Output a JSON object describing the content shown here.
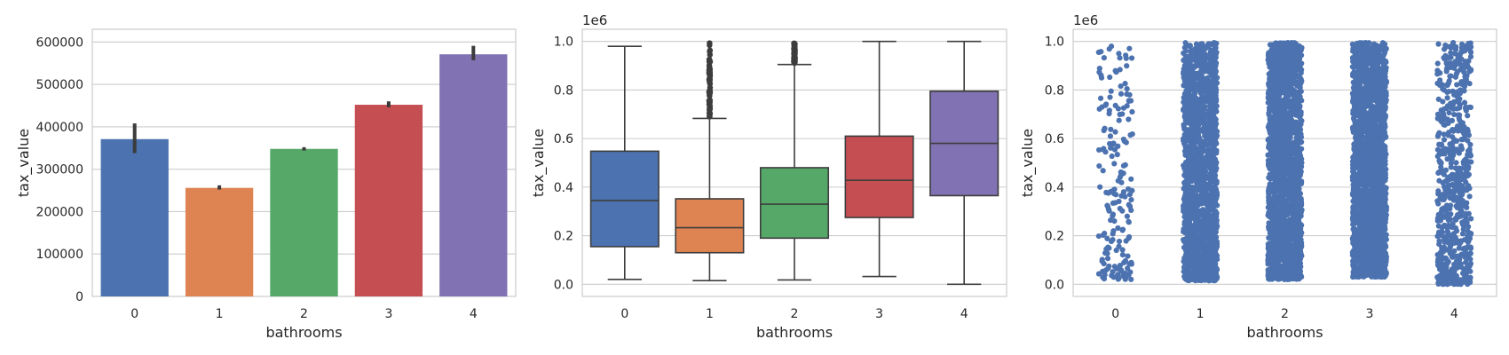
{
  "chart_data": [
    {
      "type": "bar",
      "xlabel": "bathrooms",
      "ylabel": "tax_value",
      "categories": [
        "0",
        "1",
        "2",
        "3",
        "4"
      ],
      "values": [
        371000,
        256000,
        348000,
        452000,
        571000
      ],
      "error_bars": [
        [
          338000,
          408000
        ],
        [
          252000,
          262000
        ],
        [
          344000,
          352000
        ],
        [
          446000,
          460000
        ],
        [
          557000,
          591000
        ]
      ],
      "colors": [
        "#4c72b0",
        "#dd8452",
        "#55a868",
        "#c44e52",
        "#8172b3"
      ],
      "ylim": [
        0,
        630000
      ],
      "yticks": [
        0,
        100000,
        200000,
        300000,
        400000,
        500000,
        600000
      ],
      "ytick_labels": [
        "0",
        "100000",
        "200000",
        "300000",
        "400000",
        "500000",
        "600000"
      ],
      "grid": true
    },
    {
      "type": "box",
      "xlabel": "bathrooms",
      "ylabel": "tax_value",
      "offset_label": "1e6",
      "categories": [
        "0",
        "1",
        "2",
        "3",
        "4"
      ],
      "colors": [
        "#4c72b0",
        "#dd8452",
        "#55a868",
        "#c44e52",
        "#8172b3"
      ],
      "boxes": [
        {
          "whisker_low": 0.02,
          "q1": 0.155,
          "median": 0.345,
          "q3": 0.548,
          "whisker_high": 0.98,
          "outlier_range": null
        },
        {
          "whisker_low": 0.015,
          "q1": 0.13,
          "median": 0.233,
          "q3": 0.352,
          "whisker_high": 0.683,
          "outlier_range": [
            0.69,
            0.995
          ]
        },
        {
          "whisker_low": 0.018,
          "q1": 0.19,
          "median": 0.33,
          "q3": 0.48,
          "whisker_high": 0.905,
          "outlier_range": [
            0.91,
            0.995
          ]
        },
        {
          "whisker_low": 0.032,
          "q1": 0.275,
          "median": 0.428,
          "q3": 0.61,
          "whisker_high": 1.0,
          "outlier_range": null
        },
        {
          "whisker_low": 0.0,
          "q1": 0.365,
          "median": 0.58,
          "q3": 0.795,
          "whisker_high": 1.0,
          "outlier_range": null
        }
      ],
      "ylim": [
        -0.05,
        1.05
      ],
      "yticks": [
        0.0,
        0.2,
        0.4,
        0.6,
        0.8,
        1.0
      ],
      "ytick_labels": [
        "0.0",
        "0.2",
        "0.4",
        "0.6",
        "0.8",
        "1.0"
      ],
      "grid": true
    },
    {
      "type": "scatter",
      "subtype": "strip",
      "xlabel": "bathrooms",
      "ylabel": "tax_value",
      "offset_label": "1e6",
      "categories": [
        "0",
        "1",
        "2",
        "3",
        "4"
      ],
      "color": "#4c72b0",
      "strips": [
        {
          "min": 0.02,
          "max": 0.98,
          "density": "sparse"
        },
        {
          "min": 0.015,
          "max": 0.995,
          "density": "dense"
        },
        {
          "min": 0.02,
          "max": 0.995,
          "density": "very dense"
        },
        {
          "min": 0.03,
          "max": 0.995,
          "density": "very dense"
        },
        {
          "min": 0.0,
          "max": 0.995,
          "density": "medium"
        }
      ],
      "ylim": [
        -0.05,
        1.05
      ],
      "yticks": [
        0.0,
        0.2,
        0.4,
        0.6,
        0.8,
        1.0
      ],
      "ytick_labels": [
        "0.0",
        "0.2",
        "0.4",
        "0.6",
        "0.8",
        "1.0"
      ],
      "grid": true
    }
  ]
}
